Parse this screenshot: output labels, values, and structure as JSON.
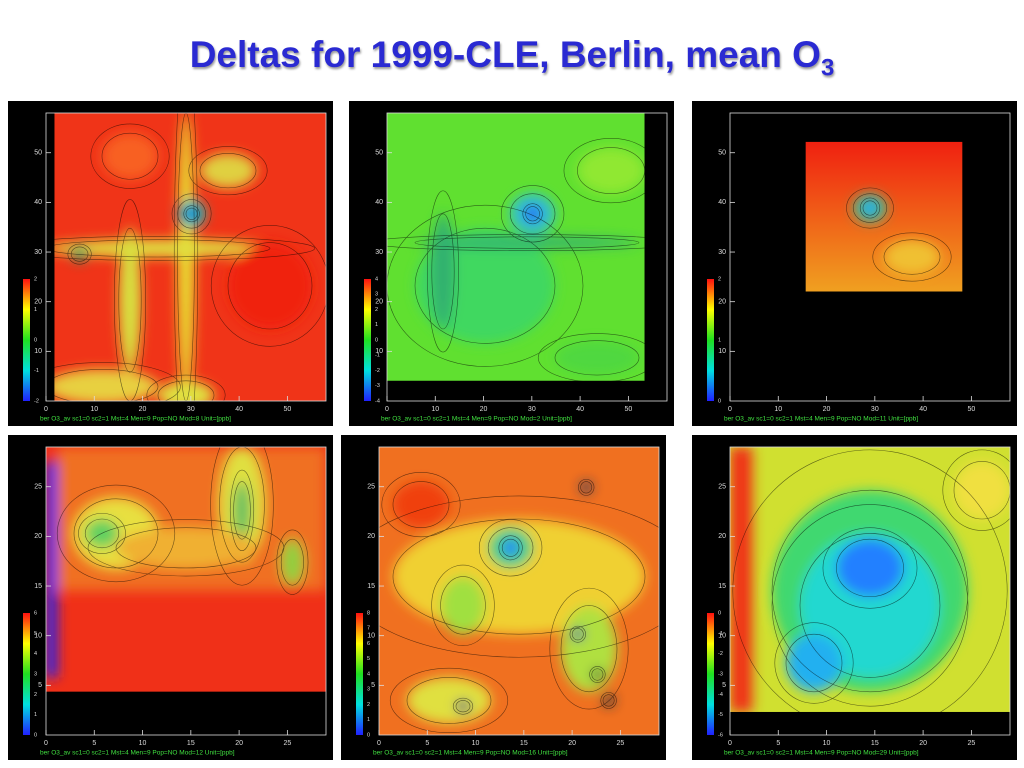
{
  "title": {
    "text": "Deltas for 1999-CLE, Berlin, mean O",
    "sub": "3"
  },
  "panels": [
    {
      "caption": "ber O3_av sc1=0 sc2=1 Mst=4 Men=9 Pop=NO Mod=8 Unit=[ppb]",
      "xlim": [
        0,
        58
      ],
      "xticks": [
        0,
        10,
        20,
        30,
        40,
        50
      ],
      "ylim": [
        0,
        58
      ],
      "yticks": [
        10,
        20,
        30,
        40,
        50
      ],
      "colorbar": [
        "-2",
        "-1",
        "0",
        "1",
        "2"
      ]
    },
    {
      "caption": "ber O3_av sc1=0 sc2=1 Mst=4 Men=9 Pop=NO Mod=2 Unit=[ppb]",
      "xlim": [
        0,
        58
      ],
      "xticks": [
        0,
        10,
        20,
        30,
        40,
        50
      ],
      "ylim": [
        0,
        58
      ],
      "yticks": [
        10,
        20,
        30,
        40,
        50
      ],
      "colorbar": [
        "-4",
        "-3",
        "-2",
        "-1",
        "0",
        "1",
        "2",
        "3",
        "4"
      ]
    },
    {
      "caption": "ber O3_av sc1=0 sc2=1 Mst=4 Men=9 Pop=NO Mod=11 Unit=[ppb]",
      "xlim": [
        0,
        58
      ],
      "xticks": [
        0,
        10,
        20,
        30,
        40,
        50
      ],
      "ylim": [
        0,
        58
      ],
      "yticks": [
        10,
        20,
        30,
        40,
        50
      ],
      "colorbar": [
        "0",
        "1",
        "2"
      ]
    },
    {
      "caption": "ber O3_av sc1=0 sc2=1 Mst=4 Men=9 Pop=NO Mod=12 Unit=[ppb]",
      "xlim": [
        0,
        29
      ],
      "xticks": [
        0,
        5,
        10,
        15,
        20,
        25
      ],
      "ylim": [
        0,
        29
      ],
      "yticks": [
        5,
        10,
        15,
        20,
        25
      ],
      "colorbar": [
        "0",
        "1",
        "2",
        "3",
        "4",
        "5",
        "6"
      ]
    },
    {
      "caption": "ber O3_av sc1=0 sc2=1 Mst=4 Men=9 Pop=NO Mod=16 Unit=[ppb]",
      "xlim": [
        0,
        29
      ],
      "xticks": [
        0,
        5,
        10,
        15,
        20,
        25
      ],
      "ylim": [
        0,
        29
      ],
      "yticks": [
        5,
        10,
        15,
        20,
        25
      ],
      "colorbar": [
        "0",
        "1",
        "2",
        "3",
        "4",
        "5",
        "6",
        "7",
        "8"
      ]
    },
    {
      "caption": "ber O3_av sc1=0 sc2=1 Mst=4 Men=9 Pop=NO Mod=29 Unit=[ppb]",
      "xlim": [
        0,
        29
      ],
      "xticks": [
        0,
        5,
        10,
        15,
        20,
        25
      ],
      "ylim": [
        0,
        29
      ],
      "yticks": [
        5,
        10,
        15,
        20,
        25
      ],
      "colorbar": [
        "-6",
        "-5",
        "-4",
        "-3",
        "-2",
        "-1",
        "0"
      ]
    }
  ]
}
